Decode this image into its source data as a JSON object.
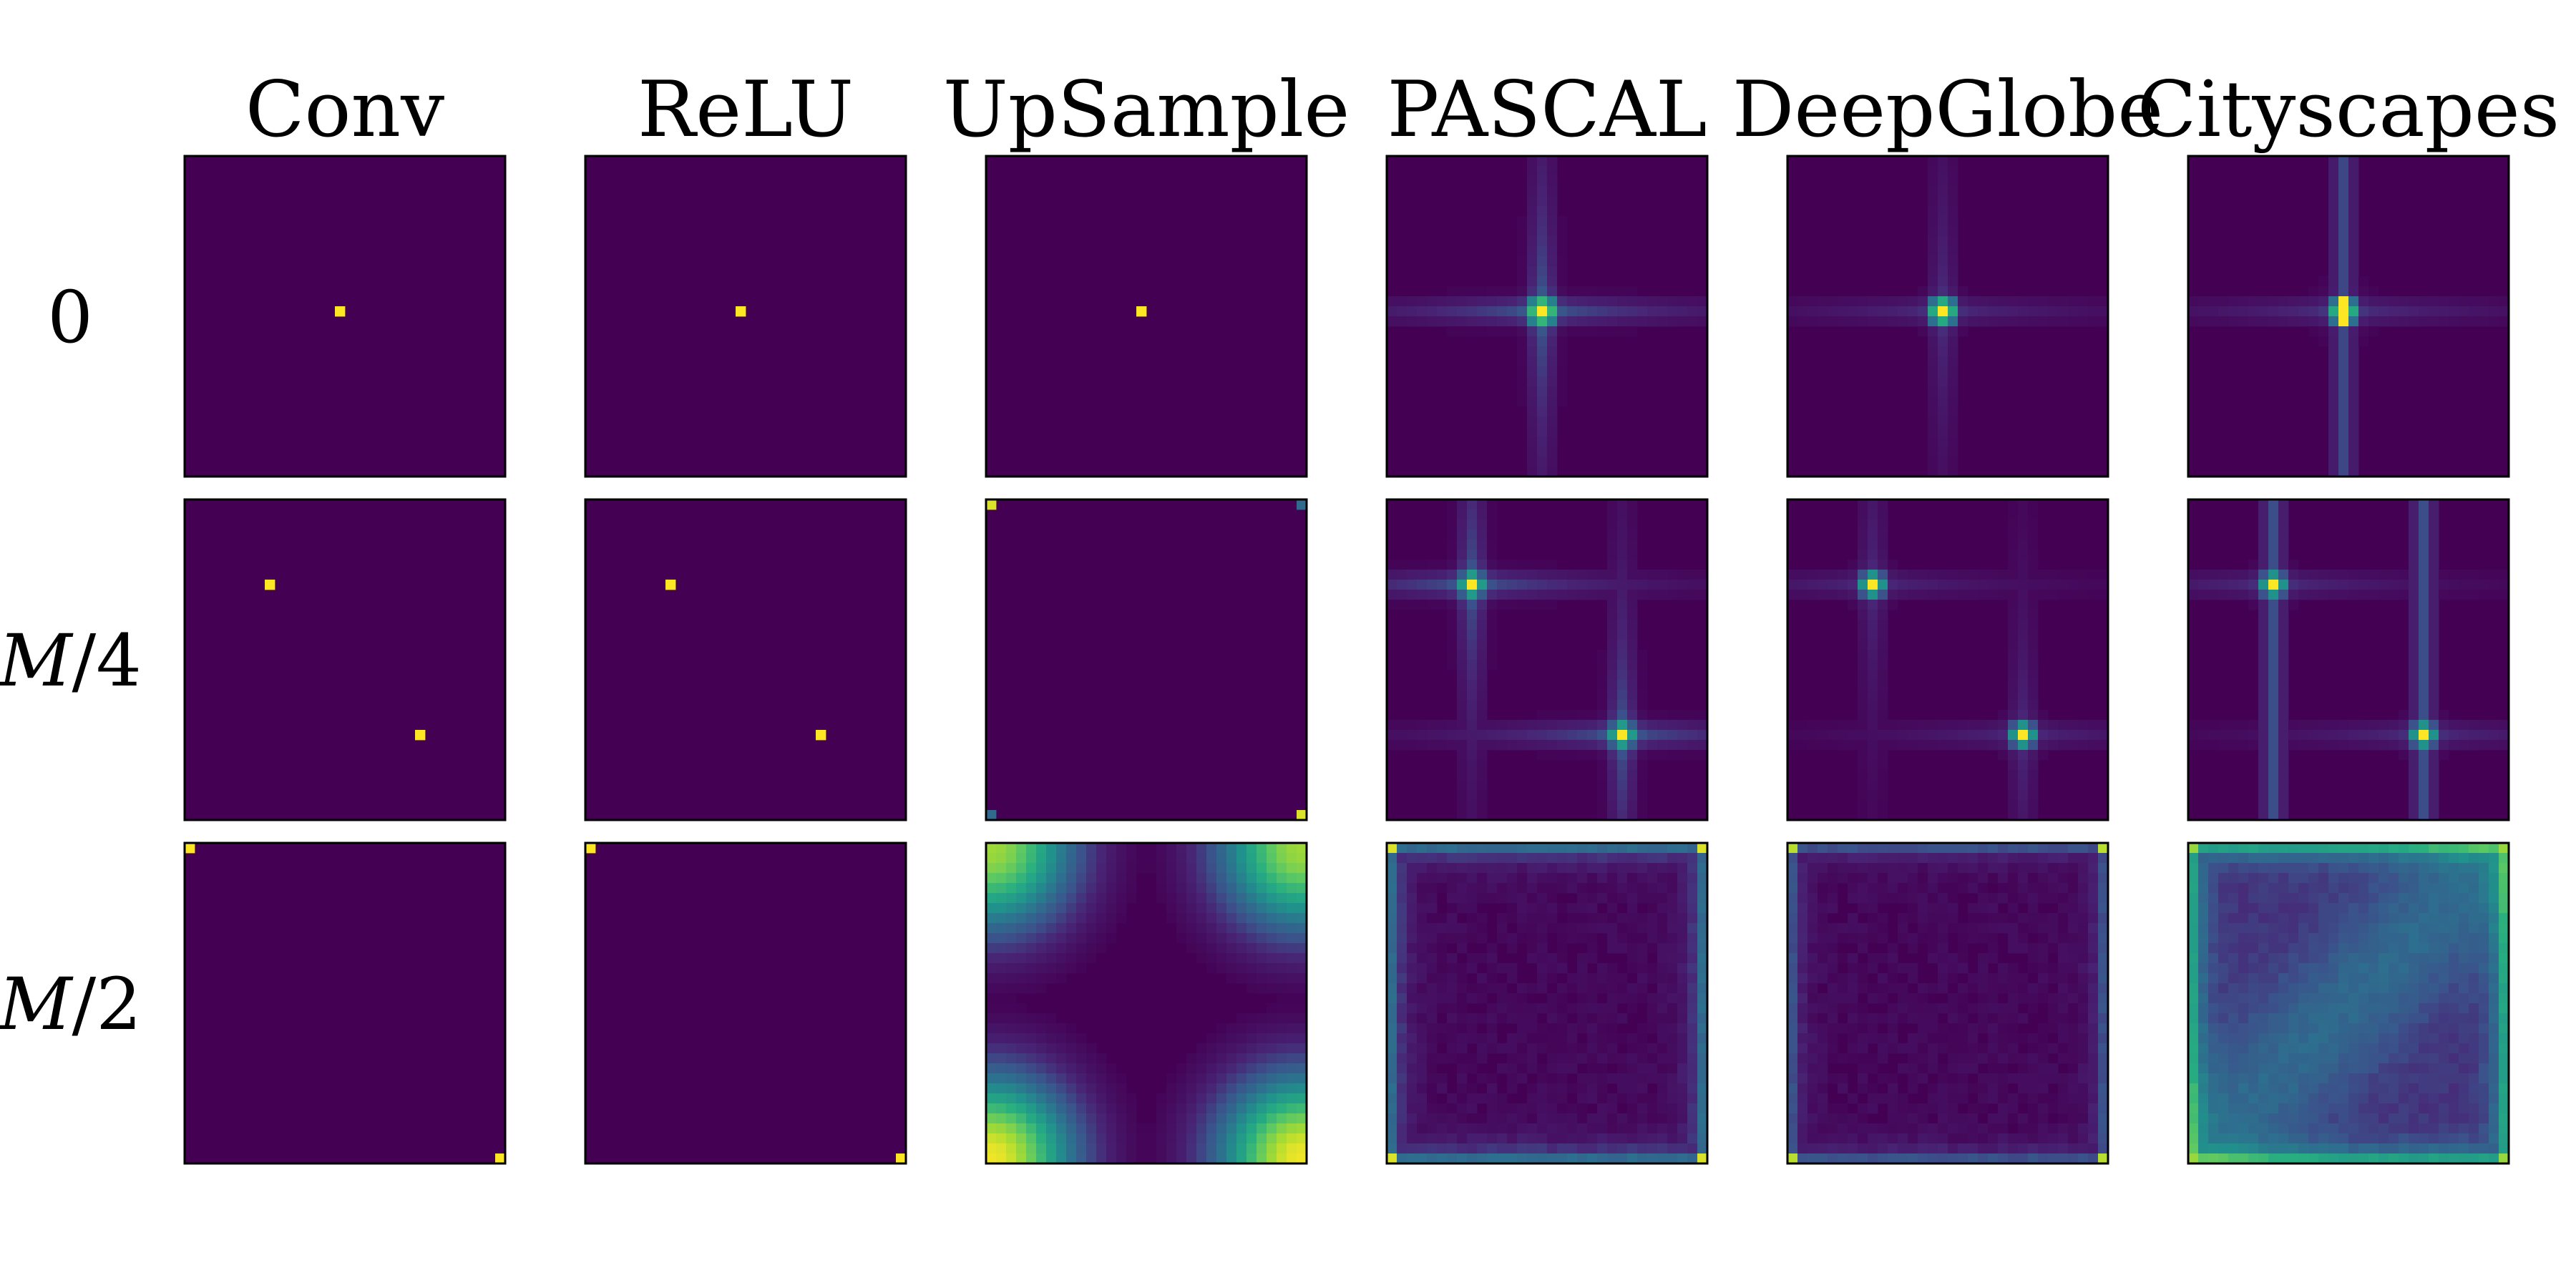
{
  "chart_data": {
    "type": "heatmap",
    "colormap": "viridis",
    "value_range": [
      0,
      1
    ],
    "grid_size": 32,
    "columns": [
      "Conv",
      "ReLU",
      "UpSample",
      "PASCAL",
      "DeepGlobe",
      "Cityscapes"
    ],
    "rows": [
      {
        "label_main": "0",
        "label_var": "",
        "label_rest": ""
      },
      {
        "label_main": "",
        "label_var": "M",
        "label_rest": "/4"
      },
      {
        "label_main": "",
        "label_var": "M",
        "label_rest": "/2"
      }
    ],
    "patterns": [
      [
        "dot-center",
        "dot-center",
        "dot-center",
        "peak-center-cross",
        "peak-center-soft",
        "peak-center-vertical"
      ],
      [
        "two-dots-diagonal",
        "two-dots-diagonal",
        "corner-dots-faint",
        "two-peaks-cross",
        "two-peaks-soft",
        "two-peaks-vertical"
      ],
      [
        "corner-dots-two",
        "corner-dots-two",
        "corner-blobs",
        "border-glow",
        "border-glow-faint",
        "border-glow-diagonal"
      ]
    ],
    "grid": false,
    "legend": "none"
  },
  "colors": {
    "background": "#440154",
    "high": "#fde725",
    "frame": "#000000"
  }
}
